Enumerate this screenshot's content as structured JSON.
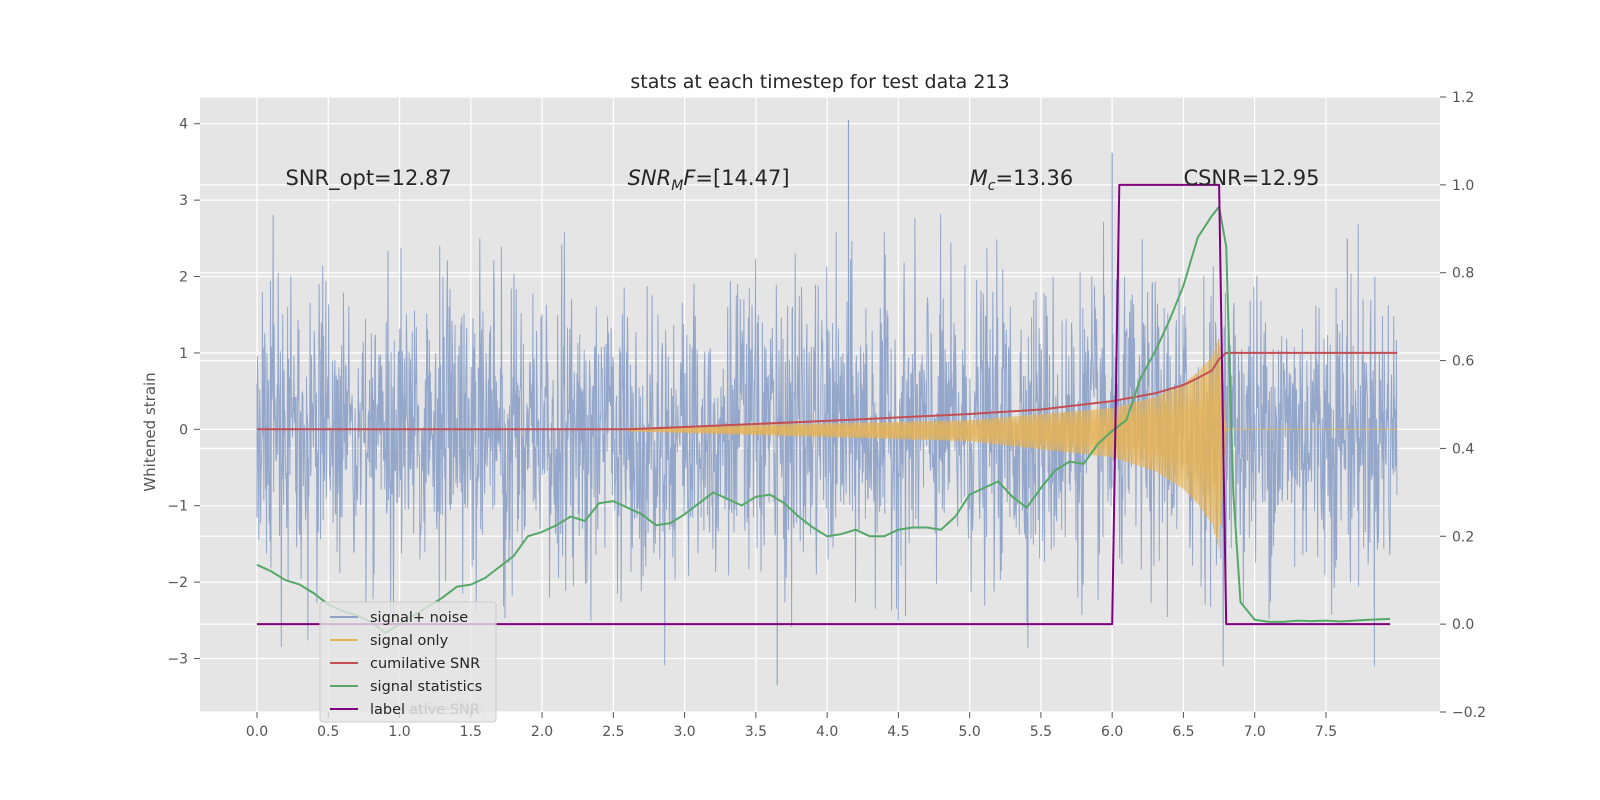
{
  "chart_data": {
    "type": "line",
    "title": "stats at each timestep for test data 213",
    "xlabel": "",
    "ylabel": "Whitened strain",
    "xlim": [
      -0.4,
      8.3
    ],
    "ylim": [
      -3.7,
      4.35
    ],
    "y2lim": [
      -0.2,
      1.2
    ],
    "grid": true,
    "legend_position": "lower-left",
    "x_ticks": [
      0.0,
      0.5,
      1.0,
      1.5,
      2.0,
      2.5,
      3.0,
      3.5,
      4.0,
      4.5,
      5.0,
      5.5,
      6.0,
      6.5,
      7.0,
      7.5
    ],
    "x_tick_labels": [
      "0.0",
      "0.5",
      "1.0",
      "1.5",
      "2.0",
      "2.5",
      "3.0",
      "3.5",
      "4.0",
      "4.5",
      "5.0",
      "5.5",
      "6.0",
      "6.5",
      "7.0",
      "7.5"
    ],
    "y_ticks": [
      -3,
      -2,
      -1,
      0,
      1,
      2,
      3,
      4
    ],
    "y_tick_labels": [
      "−3",
      "−2",
      "−1",
      "0",
      "1",
      "2",
      "3",
      "4"
    ],
    "y2_ticks": [
      -0.2,
      0.0,
      0.2,
      0.4,
      0.6,
      0.8,
      1.0,
      1.2
    ],
    "y2_tick_labels": [
      "−0.2",
      "0.0",
      "0.2",
      "0.4",
      "0.6",
      "0.8",
      "1.0",
      "1.2"
    ],
    "annotations": [
      {
        "text": "SNR_opt=12.87",
        "x": 0.2,
        "y": 3.3
      },
      {
        "text": "SNR_MF=[14.47]",
        "x": 2.6,
        "y": 3.3,
        "base": "SNR",
        "sub": "M",
        "rest": "F=[14.47]"
      },
      {
        "text": "M_c=13.36",
        "x": 5.0,
        "y": 3.3,
        "base": "M",
        "sub": "c",
        "rest": "=13.36"
      },
      {
        "text": "CSNR=12.95",
        "x": 6.5,
        "y": 3.3
      }
    ],
    "series": [
      {
        "name": "signal+ noise",
        "color": "#8fa3c9",
        "axis": "left",
        "style": "noise",
        "x_range": [
          0.0,
          8.0
        ],
        "envelope_peak": [
          4.05,
          -3.35
        ]
      },
      {
        "name": "signal only",
        "color": "#e6b353",
        "axis": "left",
        "style": "chirp",
        "x": [
          2.6,
          5.0,
          6.0,
          6.3,
          6.5,
          6.6,
          6.7,
          6.75,
          6.8
        ],
        "amplitude": [
          0.02,
          0.12,
          0.28,
          0.42,
          0.6,
          0.75,
          0.95,
          1.2,
          0.0
        ]
      },
      {
        "name": "cumilative SNR",
        "color": "#c44e52",
        "axis": "left",
        "x": [
          0.0,
          2.6,
          3.0,
          4.0,
          5.0,
          5.5,
          6.0,
          6.3,
          6.5,
          6.6,
          6.7,
          6.75,
          6.8,
          8.0
        ],
        "y": [
          0.0,
          0.0,
          0.03,
          0.11,
          0.2,
          0.26,
          0.37,
          0.47,
          0.58,
          0.67,
          0.77,
          0.92,
          1.0,
          1.0
        ]
      },
      {
        "name": "signal statistics",
        "color": "#55a868",
        "axis": "right",
        "x": [
          0.0,
          0.1,
          0.2,
          0.3,
          0.4,
          0.5,
          0.6,
          0.7,
          0.8,
          0.9,
          1.0,
          1.1,
          1.2,
          1.3,
          1.4,
          1.5,
          1.6,
          1.7,
          1.8,
          1.9,
          2.0,
          2.1,
          2.2,
          2.3,
          2.4,
          2.5,
          2.6,
          2.7,
          2.8,
          2.9,
          3.0,
          3.1,
          3.2,
          3.3,
          3.4,
          3.5,
          3.6,
          3.7,
          3.8,
          3.9,
          4.0,
          4.1,
          4.2,
          4.3,
          4.4,
          4.5,
          4.6,
          4.7,
          4.8,
          4.9,
          5.0,
          5.1,
          5.2,
          5.3,
          5.4,
          5.5,
          5.6,
          5.7,
          5.8,
          5.9,
          6.0,
          6.1,
          6.2,
          6.3,
          6.4,
          6.5,
          6.6,
          6.7,
          6.75,
          6.8,
          6.85,
          6.9,
          7.0,
          7.1,
          7.2,
          7.3,
          7.4,
          7.5,
          7.6,
          7.7,
          7.8,
          7.95
        ],
        "y": [
          0.135,
          0.12,
          0.1,
          0.09,
          0.07,
          0.045,
          0.03,
          0.02,
          0.005,
          -0.02,
          0.0,
          0.02,
          0.04,
          0.06,
          0.085,
          0.09,
          0.105,
          0.13,
          0.155,
          0.2,
          0.21,
          0.225,
          0.245,
          0.235,
          0.275,
          0.28,
          0.265,
          0.25,
          0.225,
          0.23,
          0.25,
          0.275,
          0.3,
          0.285,
          0.27,
          0.29,
          0.295,
          0.275,
          0.245,
          0.22,
          0.2,
          0.205,
          0.215,
          0.2,
          0.2,
          0.215,
          0.22,
          0.22,
          0.215,
          0.245,
          0.295,
          0.31,
          0.325,
          0.29,
          0.265,
          0.31,
          0.35,
          0.37,
          0.365,
          0.41,
          0.44,
          0.465,
          0.56,
          0.62,
          0.69,
          0.77,
          0.88,
          0.93,
          0.95,
          0.86,
          0.3,
          0.05,
          0.01,
          0.005,
          0.005,
          0.008,
          0.007,
          0.008,
          0.006,
          0.008,
          0.01,
          0.012
        ]
      },
      {
        "name": "label",
        "color": "#800080",
        "axis": "right",
        "x": [
          0.0,
          6.0,
          6.05,
          6.75,
          6.8,
          7.95
        ],
        "y": [
          0.0,
          0.0,
          1.0,
          1.0,
          0.0,
          0.0
        ]
      }
    ],
    "legend_overlap_text": "cumilative SNR"
  }
}
